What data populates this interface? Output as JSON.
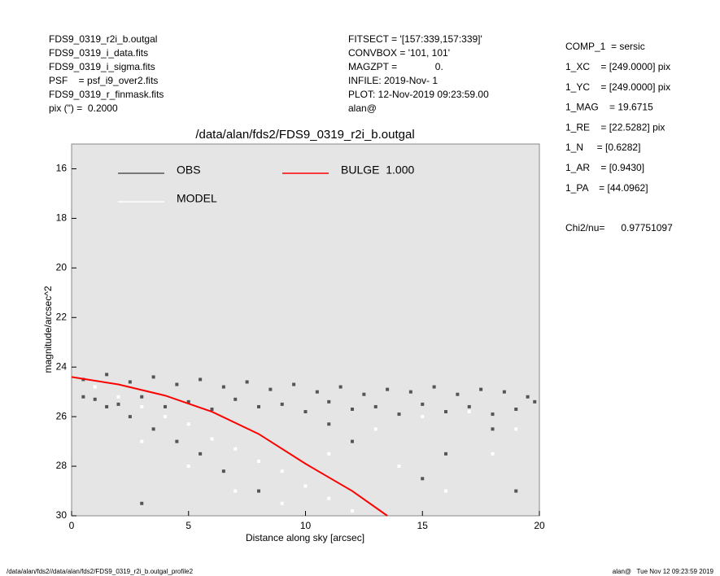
{
  "header": {
    "left": [
      "FDS9_0319_r2i_b.outgal",
      "FDS9_0319_i_data.fits",
      "FDS9_0319_i_sigma.fits",
      "PSF    = psf_i9_over2.fits",
      "FDS9_0319_r_finmask.fits",
      "pix (\") =  0.2000"
    ],
    "middle": [
      "FITSECT = '[157:339,157:339]'",
      "CONVBOX = '101, 101'",
      "MAGZPT =              0.",
      "INFILE: 2019-Nov- 1",
      "PLOT: 12-Nov-2019 09:23:59.00",
      "alan@"
    ],
    "right": [
      "COMP_1  = sersic",
      "1_XC    = [249.0000] pix",
      "1_YC    = [249.0000] pix",
      "1_MAG    = 19.6715",
      "1_RE    = [22.5282] pix",
      "1_N     = [0.6282]",
      "1_AR    = [0.9430]",
      "1_PA    = [44.0962]"
    ],
    "chi2": "Chi2/nu=      0.97751097"
  },
  "footer": {
    "left": "/data/alan/fds2//data/alan/fds2/FDS9_0319_r2i_b.outgal_profile2",
    "right": "alan@   Tue Nov 12 09:23:59 2019"
  },
  "chart_data": {
    "type": "scatter",
    "title": "/data/alan/fds2/FDS9_0319_r2i_b.outgal",
    "x_label": "Distance along sky [arcsec]",
    "y_label": "magnitude/arcsec^2",
    "xlim": [
      0,
      20
    ],
    "xticks": [
      0,
      5,
      10,
      15,
      20
    ],
    "ylim": [
      30,
      15
    ],
    "yticks": [
      16,
      18,
      20,
      22,
      24,
      26,
      28,
      30
    ],
    "series": [
      {
        "name": "OBS",
        "color": "#555555",
        "mode": "markers",
        "x": [
          0.5,
          1.5,
          2.5,
          3.5,
          4.5,
          5.5,
          6.5,
          7.5,
          8.5,
          9.5,
          10.5,
          11.5,
          12.5,
          13.5,
          14.5,
          15.5,
          16.5,
          17.5,
          18.5,
          19.5,
          1,
          2,
          3,
          4,
          5,
          6,
          7,
          8,
          9,
          10,
          11,
          12,
          13,
          14,
          15,
          16,
          17,
          18,
          19,
          19.8,
          0.5,
          1.5,
          2.5,
          3.5,
          4.5,
          5.5,
          6.5,
          12,
          15,
          18,
          8,
          3,
          16,
          19,
          11
        ],
        "values": [
          24.5,
          24.3,
          24.6,
          24.4,
          24.7,
          24.5,
          24.8,
          24.6,
          24.9,
          24.7,
          25.0,
          24.8,
          25.1,
          24.9,
          25.0,
          24.8,
          25.1,
          24.9,
          25.0,
          25.2,
          25.3,
          25.5,
          25.2,
          25.6,
          25.4,
          25.7,
          25.3,
          25.6,
          25.5,
          25.8,
          25.4,
          25.7,
          25.6,
          25.9,
          25.5,
          25.8,
          25.6,
          25.9,
          25.7,
          25.4,
          25.2,
          25.6,
          26.0,
          26.5,
          27.0,
          27.5,
          28.2,
          27.0,
          28.5,
          26.5,
          29.0,
          29.5,
          27.5,
          29.0,
          26.3
        ]
      },
      {
        "name": "MODEL",
        "color": "#ffffff",
        "mode": "markers",
        "x": [
          1,
          2,
          3,
          4,
          5,
          6,
          7,
          8,
          9,
          10,
          11,
          12,
          3,
          5,
          7,
          9,
          14,
          16,
          18,
          13,
          15,
          17,
          19,
          11
        ],
        "values": [
          24.8,
          25.2,
          25.6,
          26.0,
          26.3,
          26.9,
          27.3,
          27.8,
          28.2,
          28.8,
          29.3,
          29.8,
          27.0,
          28.0,
          29.0,
          29.5,
          28.0,
          29.0,
          27.5,
          26.5,
          26.0,
          25.8,
          26.5,
          27.5
        ]
      },
      {
        "name": "BULGE  1.000",
        "color": "#ff0000",
        "mode": "line",
        "x": [
          0,
          2,
          4,
          6,
          8,
          10,
          12,
          13.5
        ],
        "values": [
          24.4,
          24.7,
          25.15,
          25.8,
          26.7,
          27.9,
          29.0,
          30.0
        ]
      }
    ]
  }
}
